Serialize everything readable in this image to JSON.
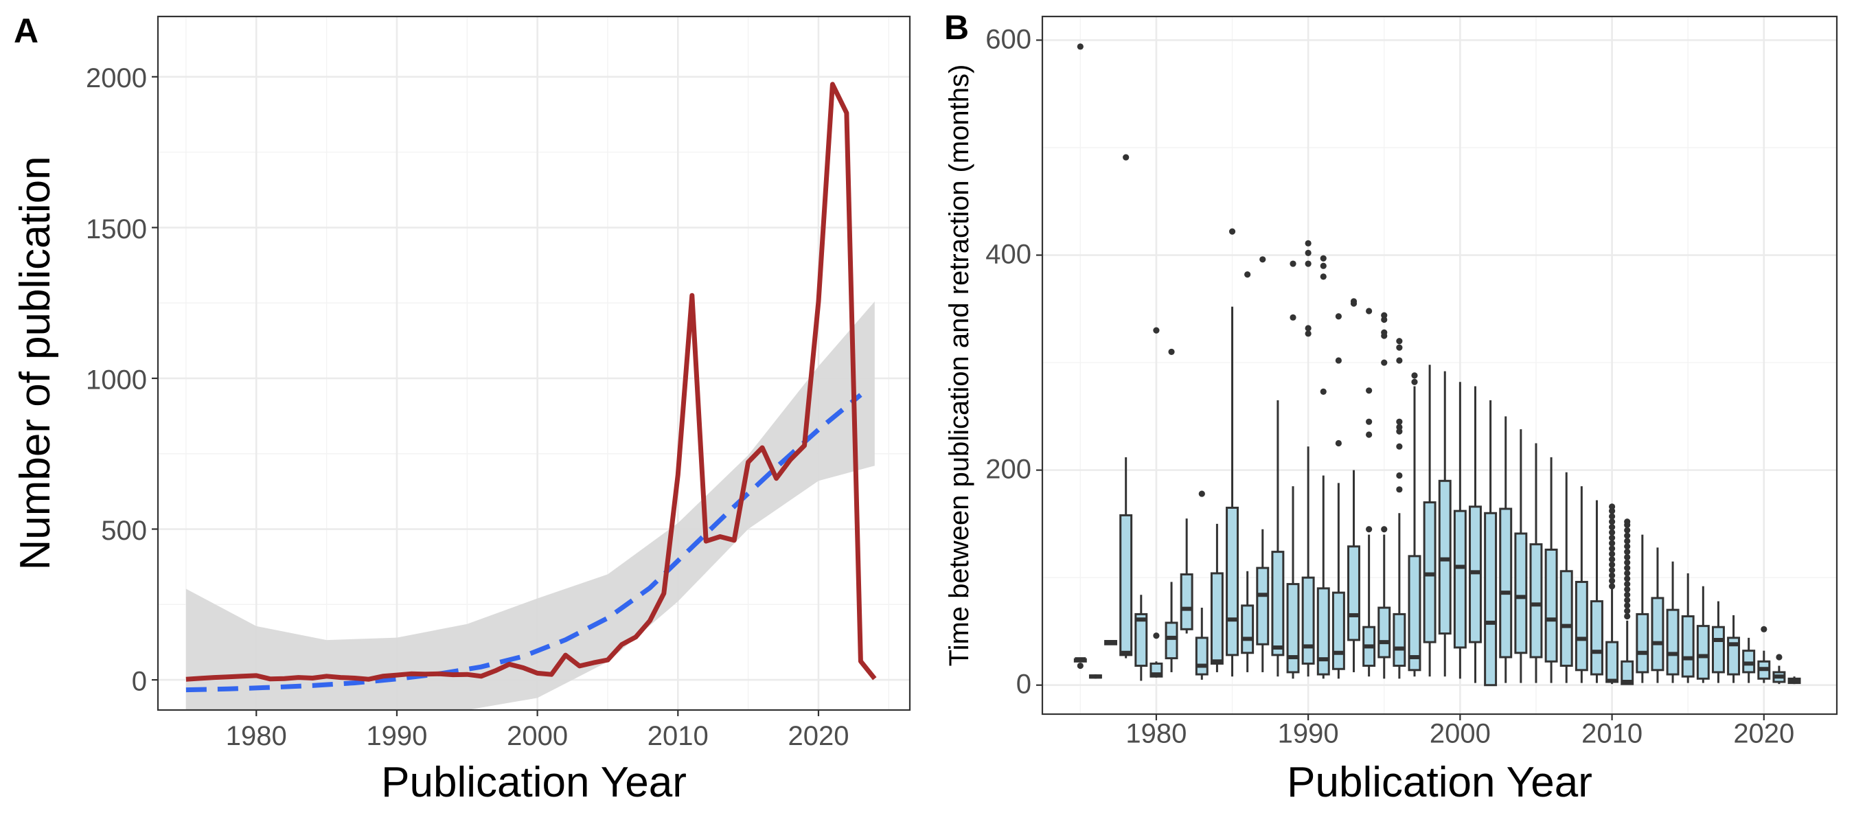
{
  "panels": {
    "a": {
      "tag": "A"
    },
    "b": {
      "tag": "B"
    }
  },
  "chart_data": [
    {
      "type": "line",
      "panel": "A",
      "title": "",
      "xlabel": "Publication Year",
      "ylabel": "Number of publication",
      "xlim": [
        1973,
        2026.5
      ],
      "ylim": [
        -100,
        2200
      ],
      "x_ticks": [
        1980,
        1990,
        2000,
        2010,
        2020
      ],
      "y_ticks": [
        0,
        500,
        1000,
        1500,
        2000
      ],
      "grid": true,
      "series": [
        {
          "role": "observed",
          "color": "#a52a2a",
          "style": "solid",
          "points": [
            [
              1975,
              2
            ],
            [
              1976,
              5
            ],
            [
              1977,
              8
            ],
            [
              1978,
              10
            ],
            [
              1979,
              12
            ],
            [
              1980,
              14
            ],
            [
              1981,
              3
            ],
            [
              1982,
              4
            ],
            [
              1983,
              8
            ],
            [
              1984,
              6
            ],
            [
              1985,
              12
            ],
            [
              1986,
              8
            ],
            [
              1987,
              6
            ],
            [
              1988,
              2
            ],
            [
              1989,
              12
            ],
            [
              1990,
              16
            ],
            [
              1991,
              20
            ],
            [
              1992,
              19
            ],
            [
              1993,
              20
            ],
            [
              1994,
              17
            ],
            [
              1995,
              18
            ],
            [
              1996,
              12
            ],
            [
              1997,
              30
            ],
            [
              1998,
              52
            ],
            [
              1999,
              40
            ],
            [
              2000,
              22
            ],
            [
              2001,
              18
            ],
            [
              2002,
              82
            ],
            [
              2003,
              46
            ],
            [
              2004,
              57
            ],
            [
              2005,
              66
            ],
            [
              2006,
              117
            ],
            [
              2007,
              142
            ],
            [
              2008,
              196
            ],
            [
              2009,
              287
            ],
            [
              2010,
              680
            ],
            [
              2011,
              1275
            ],
            [
              2012,
              460
            ],
            [
              2013,
              475
            ],
            [
              2014,
              463
            ],
            [
              2015,
              722
            ],
            [
              2016,
              770
            ],
            [
              2017,
              668
            ],
            [
              2018,
              730
            ],
            [
              2019,
              777
            ],
            [
              2020,
              1255
            ],
            [
              2021,
              1975
            ],
            [
              2022,
              1880
            ],
            [
              2023,
              62
            ],
            [
              2024,
              4
            ]
          ]
        },
        {
          "role": "trend",
          "color": "#3366ee",
          "style": "dashed",
          "points": [
            [
              1975,
              -33
            ],
            [
              1978,
              -30
            ],
            [
              1981,
              -25
            ],
            [
              1984,
              -19
            ],
            [
              1987,
              -10
            ],
            [
              1990,
              3
            ],
            [
              1993,
              20
            ],
            [
              1996,
              43
            ],
            [
              1999,
              78
            ],
            [
              2002,
              133
            ],
            [
              2005,
              205
            ],
            [
              2008,
              305
            ],
            [
              2011,
              440
            ],
            [
              2014,
              575
            ],
            [
              2017,
              705
            ],
            [
              2020,
              830
            ],
            [
              2023,
              945
            ]
          ],
          "band": [
            [
              1975,
              -170,
              302
            ],
            [
              1980,
              -170,
              178
            ],
            [
              1985,
              -150,
              132
            ],
            [
              1990,
              -130,
              140
            ],
            [
              1995,
              -120,
              185
            ],
            [
              2000,
              -60,
              270
            ],
            [
              2005,
              60,
              350
            ],
            [
              2010,
              260,
              520
            ],
            [
              2015,
              500,
              745
            ],
            [
              2020,
              660,
              1040
            ],
            [
              2024,
              710,
              1255
            ]
          ],
          "band_color": "#d9d9d9"
        }
      ]
    },
    {
      "type": "box",
      "panel": "B",
      "title": "",
      "xlabel": "Publication Year",
      "ylabel": "Time between publication and retraction (months)",
      "xlim": [
        1972.5,
        2024.8
      ],
      "ylim": [
        -27,
        622
      ],
      "x_ticks": [
        1980,
        1990,
        2000,
        2010,
        2020
      ],
      "y_ticks": [
        0,
        200,
        400,
        600
      ],
      "grid": true,
      "box_color": "#add8e6",
      "box_outline": "#333333",
      "boxes": [
        {
          "year": 1975,
          "lo": 22,
          "q1": 22,
          "med": 24,
          "q3": 24,
          "hi": 24,
          "out": [
            594,
            18
          ]
        },
        {
          "year": 1976,
          "lo": 6,
          "q1": 7,
          "med": 8,
          "q3": 9,
          "hi": 10,
          "out": []
        },
        {
          "year": 1977,
          "lo": 38,
          "q1": 38,
          "med": 40,
          "q3": 41,
          "hi": 41,
          "out": []
        },
        {
          "year": 1978,
          "lo": 25,
          "q1": 28,
          "med": 30,
          "q3": 158,
          "hi": 212,
          "out": [
            491
          ]
        },
        {
          "year": 1979,
          "lo": 4,
          "q1": 18,
          "med": 61,
          "q3": 66,
          "hi": 84,
          "out": []
        },
        {
          "year": 1980,
          "lo": 7,
          "q1": 8,
          "med": 10,
          "q3": 20,
          "hi": 22,
          "out": [
            330,
            46
          ]
        },
        {
          "year": 1981,
          "lo": 12,
          "q1": 25,
          "med": 44,
          "q3": 58,
          "hi": 96,
          "out": [
            310
          ]
        },
        {
          "year": 1982,
          "lo": 48,
          "q1": 52,
          "med": 71,
          "q3": 103,
          "hi": 155,
          "out": []
        },
        {
          "year": 1983,
          "lo": 5,
          "q1": 10,
          "med": 18,
          "q3": 44,
          "hi": 72,
          "out": [
            178
          ]
        },
        {
          "year": 1984,
          "lo": 12,
          "q1": 20,
          "med": 22,
          "q3": 104,
          "hi": 150,
          "out": []
        },
        {
          "year": 1985,
          "lo": 8,
          "q1": 28,
          "med": 61,
          "q3": 165,
          "hi": 352,
          "out": [
            422
          ]
        },
        {
          "year": 1986,
          "lo": 12,
          "q1": 30,
          "med": 43,
          "q3": 74,
          "hi": 106,
          "out": [
            382
          ]
        },
        {
          "year": 1987,
          "lo": 12,
          "q1": 38,
          "med": 84,
          "q3": 109,
          "hi": 145,
          "out": [
            396
          ]
        },
        {
          "year": 1988,
          "lo": 8,
          "q1": 28,
          "med": 35,
          "q3": 124,
          "hi": 265,
          "out": []
        },
        {
          "year": 1989,
          "lo": 6,
          "q1": 12,
          "med": 26,
          "q3": 94,
          "hi": 185,
          "out": [
            392,
            342
          ]
        },
        {
          "year": 1990,
          "lo": 8,
          "q1": 20,
          "med": 36,
          "q3": 100,
          "hi": 222,
          "out": [
            411,
            402,
            392,
            332,
            327
          ]
        },
        {
          "year": 1991,
          "lo": 6,
          "q1": 10,
          "med": 24,
          "q3": 90,
          "hi": 195,
          "out": [
            397,
            390,
            380,
            273
          ]
        },
        {
          "year": 1992,
          "lo": 6,
          "q1": 15,
          "med": 30,
          "q3": 86,
          "hi": 188,
          "out": [
            343,
            302,
            225
          ]
        },
        {
          "year": 1993,
          "lo": 12,
          "q1": 42,
          "med": 65,
          "q3": 129,
          "hi": 200,
          "out": [
            357,
            355
          ]
        },
        {
          "year": 1994,
          "lo": 8,
          "q1": 18,
          "med": 36,
          "q3": 54,
          "hi": 140,
          "out": [
            348,
            274,
            245,
            233,
            145
          ]
        },
        {
          "year": 1995,
          "lo": 6,
          "q1": 26,
          "med": 40,
          "q3": 72,
          "hi": 140,
          "out": [
            344,
            340,
            328,
            325,
            300,
            145
          ]
        },
        {
          "year": 1996,
          "lo": 6,
          "q1": 18,
          "med": 34,
          "q3": 66,
          "hi": 160,
          "out": [
            320,
            314,
            302,
            245,
            240,
            236,
            222,
            195,
            182
          ]
        },
        {
          "year": 1997,
          "lo": 8,
          "q1": 14,
          "med": 26,
          "q3": 120,
          "hi": 278,
          "out": [
            288,
            282
          ]
        },
        {
          "year": 1998,
          "lo": 8,
          "q1": 40,
          "med": 103,
          "q3": 170,
          "hi": 298,
          "out": []
        },
        {
          "year": 1999,
          "lo": 8,
          "q1": 48,
          "med": 117,
          "q3": 190,
          "hi": 292,
          "out": []
        },
        {
          "year": 2000,
          "lo": 6,
          "q1": 35,
          "med": 110,
          "q3": 162,
          "hi": 282,
          "out": []
        },
        {
          "year": 2001,
          "lo": 2,
          "q1": 40,
          "med": 105,
          "q3": 166,
          "hi": 278,
          "out": []
        },
        {
          "year": 2002,
          "lo": 0,
          "q1": 0,
          "med": 58,
          "q3": 160,
          "hi": 265,
          "out": []
        },
        {
          "year": 2003,
          "lo": 2,
          "q1": 26,
          "med": 86,
          "q3": 164,
          "hi": 250,
          "out": []
        },
        {
          "year": 2004,
          "lo": 2,
          "q1": 30,
          "med": 82,
          "q3": 141,
          "hi": 238,
          "out": []
        },
        {
          "year": 2005,
          "lo": 2,
          "q1": 26,
          "med": 75,
          "q3": 131,
          "hi": 225,
          "out": []
        },
        {
          "year": 2006,
          "lo": 2,
          "q1": 22,
          "med": 61,
          "q3": 126,
          "hi": 212,
          "out": []
        },
        {
          "year": 2007,
          "lo": 2,
          "q1": 18,
          "med": 55,
          "q3": 106,
          "hi": 198,
          "out": []
        },
        {
          "year": 2008,
          "lo": 2,
          "q1": 14,
          "med": 43,
          "q3": 96,
          "hi": 185,
          "out": []
        },
        {
          "year": 2009,
          "lo": 2,
          "q1": 10,
          "med": 31,
          "q3": 78,
          "hi": 172,
          "out": []
        },
        {
          "year": 2010,
          "lo": 1,
          "q1": 3,
          "med": 4,
          "q3": 40,
          "hi": 90,
          "out": [
            92,
            97,
            102,
            107,
            112,
            117,
            122,
            127,
            132,
            137,
            142,
            147,
            152,
            157,
            162,
            166
          ]
        },
        {
          "year": 2011,
          "lo": 1,
          "q1": 1,
          "med": 3,
          "q3": 22,
          "hi": 60,
          "out": [
            64,
            69,
            74,
            79,
            84,
            89,
            94,
            99,
            104,
            109,
            114,
            119,
            124,
            129,
            134,
            139,
            144,
            149,
            152
          ]
        },
        {
          "year": 2012,
          "lo": 2,
          "q1": 12,
          "med": 30,
          "q3": 66,
          "hi": 140,
          "out": []
        },
        {
          "year": 2013,
          "lo": 2,
          "q1": 14,
          "med": 39,
          "q3": 81,
          "hi": 128,
          "out": []
        },
        {
          "year": 2014,
          "lo": 2,
          "q1": 10,
          "med": 29,
          "q3": 70,
          "hi": 115,
          "out": []
        },
        {
          "year": 2015,
          "lo": 2,
          "q1": 8,
          "med": 25,
          "q3": 64,
          "hi": 104,
          "out": []
        },
        {
          "year": 2016,
          "lo": 2,
          "q1": 6,
          "med": 27,
          "q3": 55,
          "hi": 92,
          "out": []
        },
        {
          "year": 2017,
          "lo": 2,
          "q1": 12,
          "med": 42,
          "q3": 54,
          "hi": 78,
          "out": []
        },
        {
          "year": 2018,
          "lo": 2,
          "q1": 10,
          "med": 38,
          "q3": 44,
          "hi": 65,
          "out": []
        },
        {
          "year": 2019,
          "lo": 2,
          "q1": 12,
          "med": 20,
          "q3": 32,
          "hi": 44,
          "out": []
        },
        {
          "year": 2020,
          "lo": 2,
          "q1": 6,
          "med": 15,
          "q3": 22,
          "hi": 32,
          "out": [
            52
          ]
        },
        {
          "year": 2021,
          "lo": 1,
          "q1": 3,
          "med": 8,
          "q3": 12,
          "hi": 18,
          "out": [
            26
          ]
        },
        {
          "year": 2022,
          "lo": 1,
          "q1": 2,
          "med": 4,
          "q3": 6,
          "hi": 8,
          "out": []
        }
      ]
    }
  ]
}
